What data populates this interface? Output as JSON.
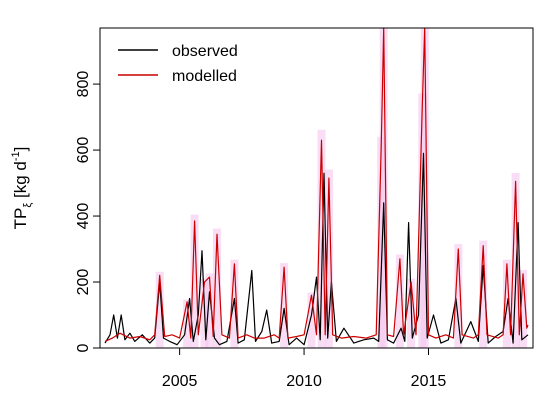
{
  "chart_data": {
    "type": "line",
    "title": "",
    "xlabel": "",
    "ylabel": {
      "base": "TP",
      "subscript": "ξ",
      "unit_prefix": " [kg d",
      "unit_sup": "-1",
      "unit_suffix": "]"
    },
    "xlim": [
      2001.8,
      2019.2
    ],
    "ylim": [
      0,
      970
    ],
    "x_ticks": [
      2005,
      2010,
      2015
    ],
    "y_ticks": [
      0,
      200,
      400,
      600,
      800
    ],
    "legend_position": "top-left",
    "band_color": "#f5c6ef",
    "series": [
      {
        "name": "observed",
        "color": "#000000",
        "points": [
          [
            2002.0,
            15
          ],
          [
            2002.2,
            40
          ],
          [
            2002.35,
            100
          ],
          [
            2002.5,
            30
          ],
          [
            2002.65,
            100
          ],
          [
            2002.8,
            25
          ],
          [
            2003.0,
            45
          ],
          [
            2003.2,
            20
          ],
          [
            2003.5,
            40
          ],
          [
            2003.8,
            15
          ],
          [
            2004.0,
            30
          ],
          [
            2004.2,
            200
          ],
          [
            2004.35,
            30
          ],
          [
            2004.6,
            20
          ],
          [
            2004.9,
            10
          ],
          [
            2005.2,
            40
          ],
          [
            2005.4,
            150
          ],
          [
            2005.55,
            20
          ],
          [
            2005.75,
            100
          ],
          [
            2005.9,
            295
          ],
          [
            2006.05,
            25
          ],
          [
            2006.2,
            170
          ],
          [
            2006.4,
            30
          ],
          [
            2006.6,
            10
          ],
          [
            2006.9,
            20
          ],
          [
            2007.2,
            150
          ],
          [
            2007.35,
            15
          ],
          [
            2007.6,
            25
          ],
          [
            2007.9,
            235
          ],
          [
            2008.05,
            20
          ],
          [
            2008.3,
            50
          ],
          [
            2008.5,
            115
          ],
          [
            2008.7,
            15
          ],
          [
            2009.0,
            20
          ],
          [
            2009.2,
            120
          ],
          [
            2009.4,
            10
          ],
          [
            2009.7,
            30
          ],
          [
            2010.0,
            10
          ],
          [
            2010.3,
            100
          ],
          [
            2010.5,
            215
          ],
          [
            2010.65,
            25
          ],
          [
            2010.8,
            530
          ],
          [
            2010.95,
            30
          ],
          [
            2011.1,
            200
          ],
          [
            2011.3,
            20
          ],
          [
            2011.6,
            60
          ],
          [
            2012.0,
            15
          ],
          [
            2012.4,
            25
          ],
          [
            2012.8,
            30
          ],
          [
            2013.0,
            20
          ],
          [
            2013.2,
            440
          ],
          [
            2013.35,
            25
          ],
          [
            2013.6,
            15
          ],
          [
            2013.9,
            60
          ],
          [
            2014.05,
            20
          ],
          [
            2014.2,
            380
          ],
          [
            2014.35,
            30
          ],
          [
            2014.6,
            100
          ],
          [
            2014.8,
            590
          ],
          [
            2014.95,
            30
          ],
          [
            2015.2,
            100
          ],
          [
            2015.5,
            15
          ],
          [
            2015.8,
            25
          ],
          [
            2016.1,
            150
          ],
          [
            2016.3,
            15
          ],
          [
            2016.7,
            80
          ],
          [
            2017.0,
            20
          ],
          [
            2017.2,
            250
          ],
          [
            2017.4,
            15
          ],
          [
            2017.7,
            35
          ],
          [
            2018.0,
            50
          ],
          [
            2018.2,
            150
          ],
          [
            2018.4,
            15
          ],
          [
            2018.6,
            380
          ],
          [
            2018.75,
            25
          ],
          [
            2019.0,
            40
          ]
        ]
      },
      {
        "name": "modelled",
        "color": "#cc0000",
        "points": [
          [
            2002.0,
            20
          ],
          [
            2002.3,
            30
          ],
          [
            2002.6,
            45
          ],
          [
            2003.0,
            30
          ],
          [
            2003.4,
            35
          ],
          [
            2003.8,
            25
          ],
          [
            2004.0,
            40
          ],
          [
            2004.2,
            220
          ],
          [
            2004.4,
            35
          ],
          [
            2004.7,
            40
          ],
          [
            2005.0,
            30
          ],
          [
            2005.3,
            140
          ],
          [
            2005.45,
            30
          ],
          [
            2005.6,
            385
          ],
          [
            2005.75,
            40
          ],
          [
            2006.0,
            200
          ],
          [
            2006.2,
            215
          ],
          [
            2006.35,
            35
          ],
          [
            2006.5,
            345
          ],
          [
            2006.7,
            40
          ],
          [
            2007.0,
            30
          ],
          [
            2007.2,
            255
          ],
          [
            2007.35,
            30
          ],
          [
            2007.7,
            40
          ],
          [
            2008.0,
            30
          ],
          [
            2008.4,
            30
          ],
          [
            2008.8,
            40
          ],
          [
            2009.0,
            30
          ],
          [
            2009.2,
            245
          ],
          [
            2009.35,
            30
          ],
          [
            2009.7,
            35
          ],
          [
            2010.0,
            40
          ],
          [
            2010.3,
            160
          ],
          [
            2010.5,
            40
          ],
          [
            2010.7,
            630
          ],
          [
            2010.85,
            40
          ],
          [
            2011.0,
            515
          ],
          [
            2011.15,
            40
          ],
          [
            2011.5,
            30
          ],
          [
            2012.0,
            35
          ],
          [
            2012.5,
            30
          ],
          [
            2012.9,
            40
          ],
          [
            2013.1,
            610
          ],
          [
            2013.2,
            970
          ],
          [
            2013.35,
            40
          ],
          [
            2013.6,
            35
          ],
          [
            2013.85,
            270
          ],
          [
            2014.0,
            40
          ],
          [
            2014.3,
            200
          ],
          [
            2014.5,
            40
          ],
          [
            2014.75,
            735
          ],
          [
            2014.85,
            970
          ],
          [
            2015.0,
            40
          ],
          [
            2015.3,
            30
          ],
          [
            2015.7,
            40
          ],
          [
            2016.0,
            30
          ],
          [
            2016.2,
            300
          ],
          [
            2016.35,
            40
          ],
          [
            2016.8,
            30
          ],
          [
            2017.0,
            40
          ],
          [
            2017.2,
            310
          ],
          [
            2017.35,
            40
          ],
          [
            2017.8,
            30
          ],
          [
            2018.0,
            40
          ],
          [
            2018.15,
            255
          ],
          [
            2018.3,
            40
          ],
          [
            2018.5,
            505
          ],
          [
            2018.65,
            40
          ],
          [
            2018.8,
            225
          ],
          [
            2018.95,
            60
          ],
          [
            2019.0,
            70
          ]
        ]
      }
    ]
  }
}
